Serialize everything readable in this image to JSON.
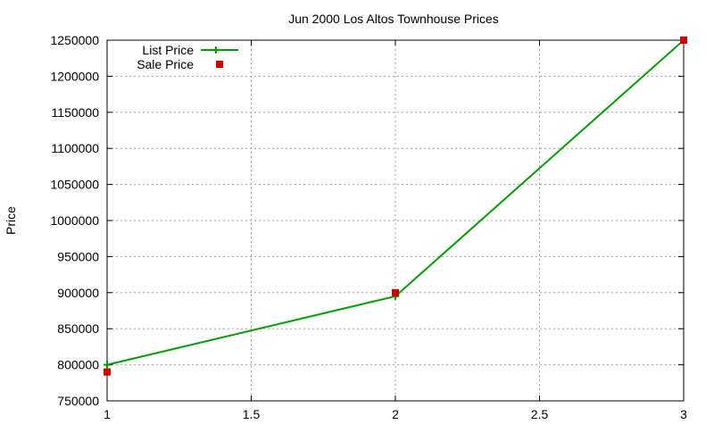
{
  "chart_data": {
    "type": "line",
    "title": "Jun 2000 Los Altos Townhouse Prices",
    "xlabel": "",
    "ylabel": "Price",
    "xlim": [
      1,
      3
    ],
    "ylim": [
      750000,
      1250000
    ],
    "xticks": [
      "1",
      "1.5",
      "2",
      "2.5",
      "3"
    ],
    "yticks": [
      "750000",
      "800000",
      "850000",
      "900000",
      "950000",
      "1000000",
      "1050000",
      "1100000",
      "1150000",
      "1200000",
      "1250000"
    ],
    "grid": true,
    "legend_position": "top-left",
    "series": [
      {
        "name": "List Price",
        "style": "linespoints",
        "color": "#00a000",
        "x": [
          1,
          2,
          3
        ],
        "y": [
          800000,
          895000,
          1250000
        ]
      },
      {
        "name": "Sale Price",
        "style": "points",
        "color": "#cc0000",
        "x": [
          1,
          2,
          3
        ],
        "y": [
          790000,
          900000,
          1250000
        ]
      }
    ]
  }
}
